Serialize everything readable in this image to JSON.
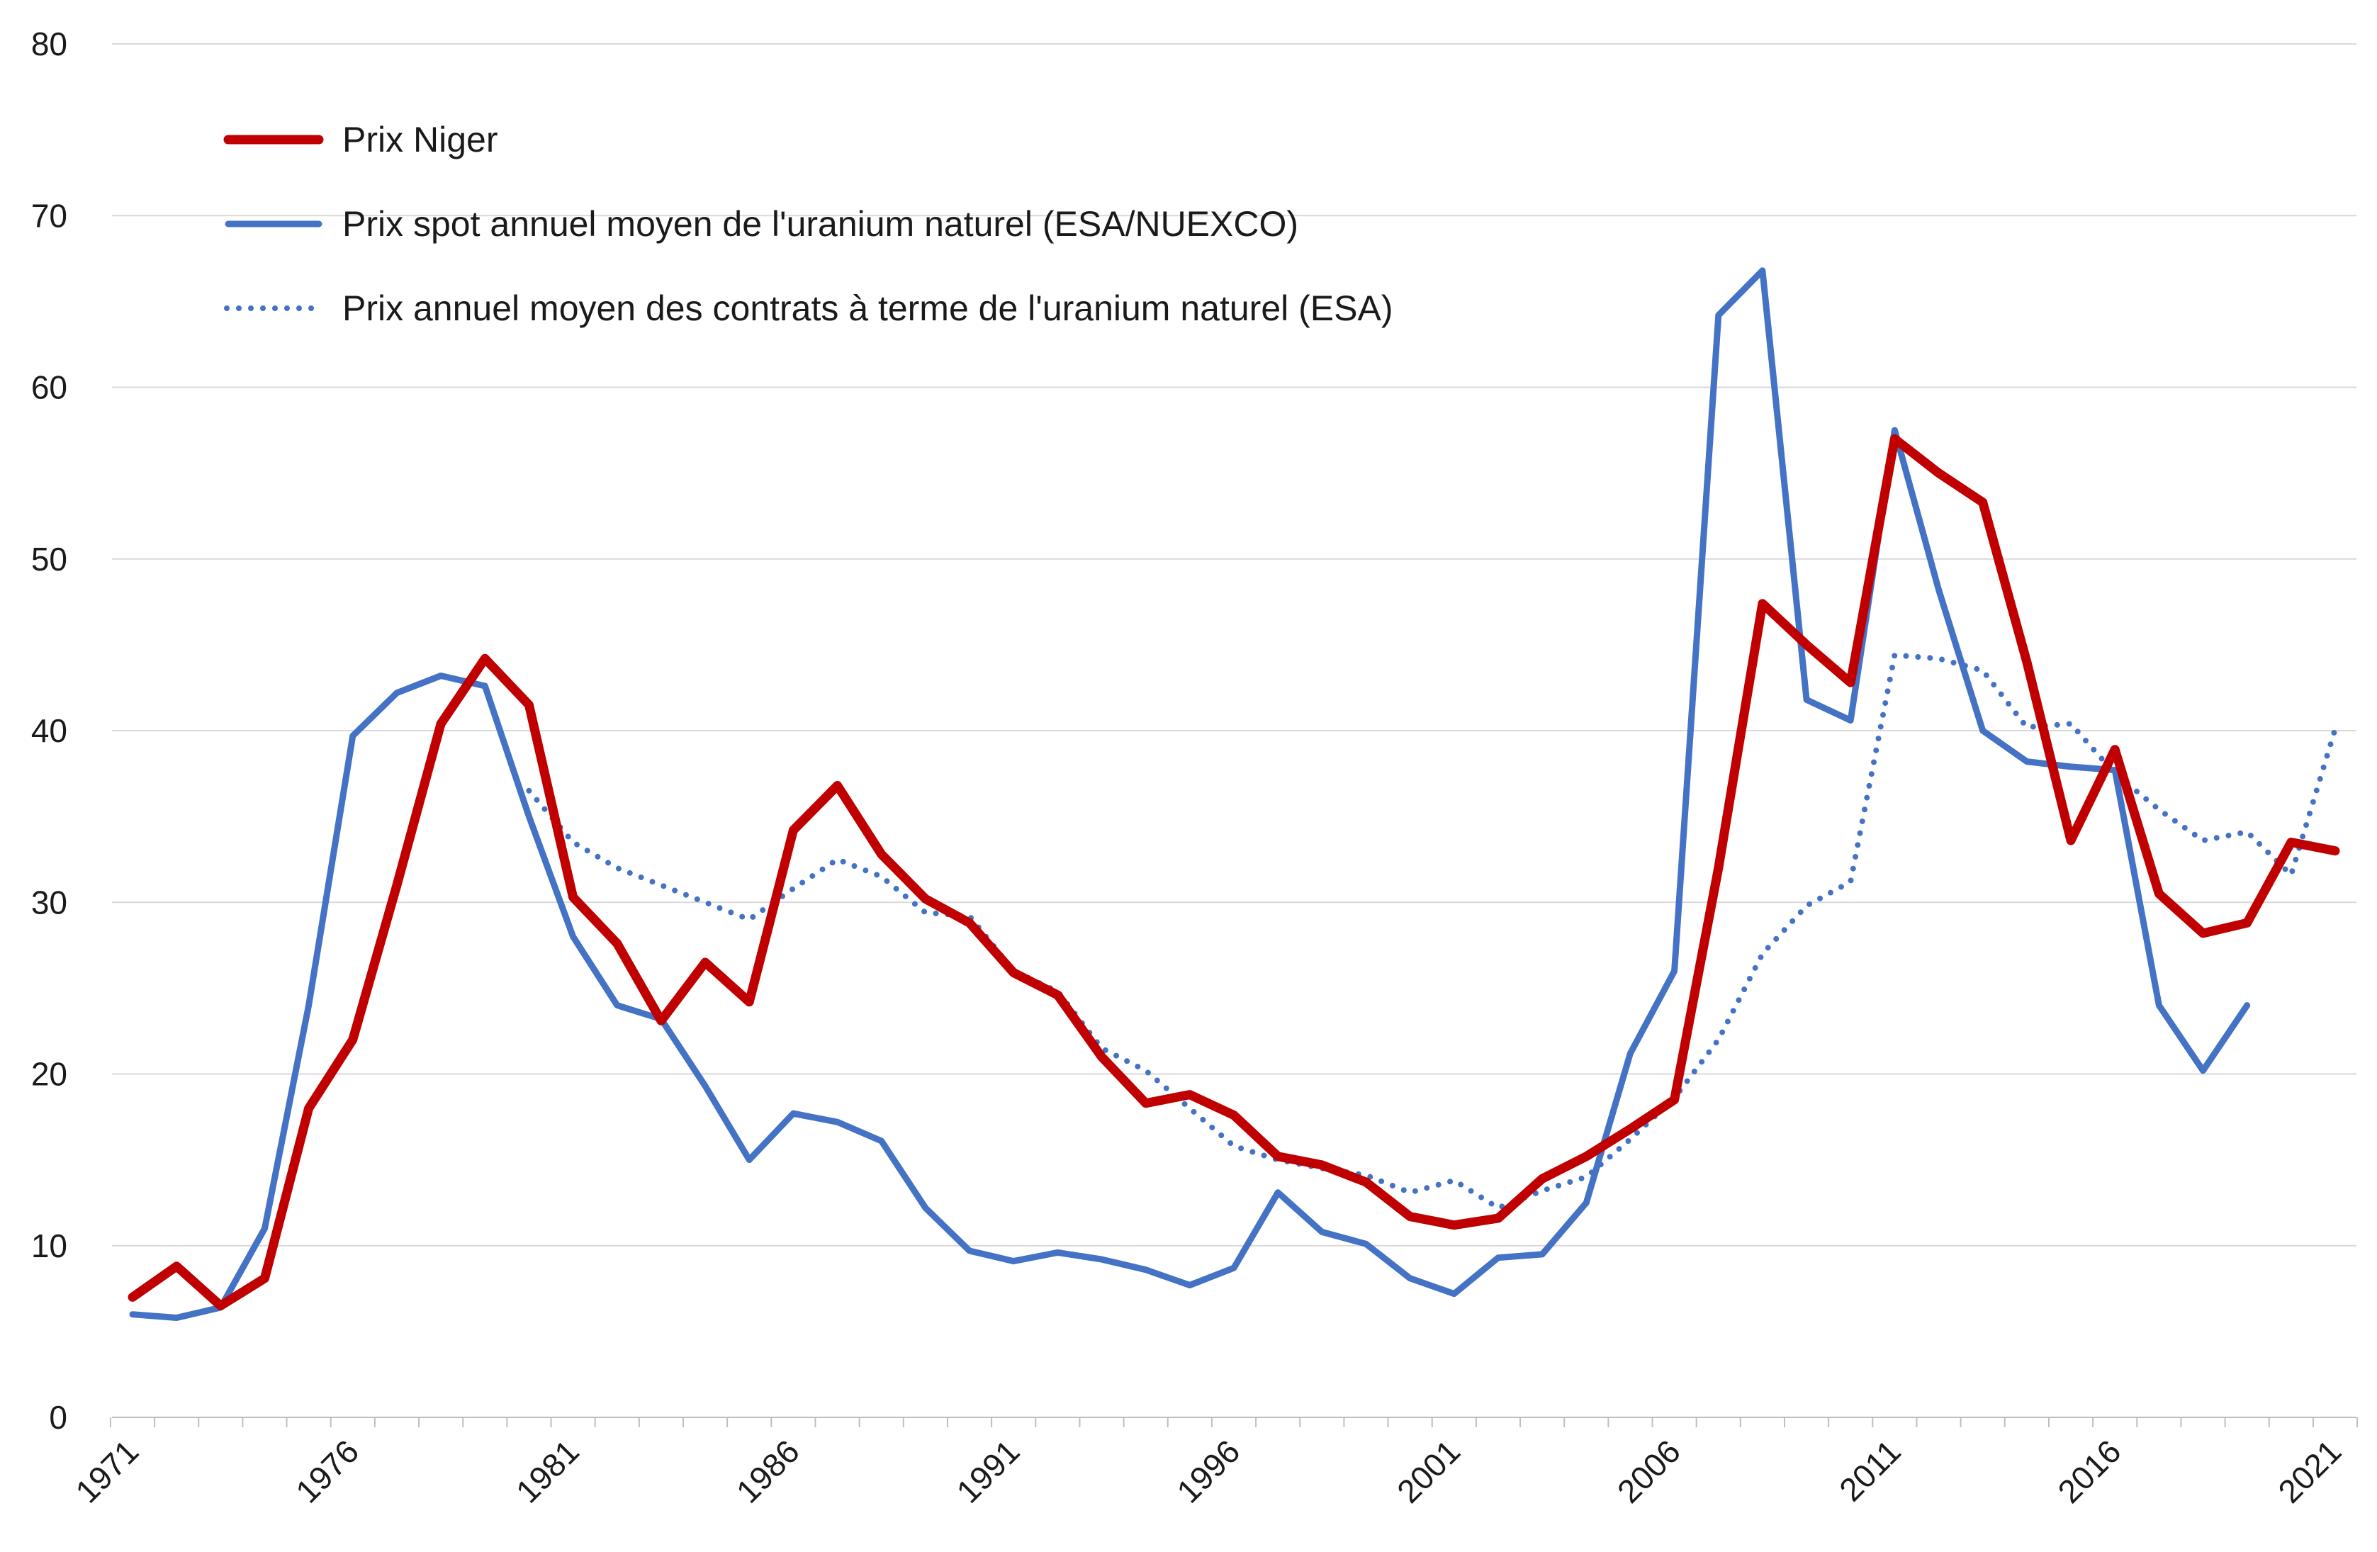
{
  "chart_data": {
    "type": "line",
    "title": "",
    "xlabel": "",
    "ylabel": "",
    "ylim": [
      0,
      80
    ],
    "xlim": [
      1971,
      2021
    ],
    "y_ticks": [
      "0",
      "10",
      "20",
      "30",
      "40",
      "50",
      "60",
      "70",
      "80"
    ],
    "x_ticks": [
      "1971",
      "1976",
      "1981",
      "1986",
      "1991",
      "1996",
      "2001",
      "2006",
      "2011",
      "2016",
      "2021"
    ],
    "grid": "horizontal",
    "legend_position": "top-left",
    "series": [
      {
        "name": "Prix Niger",
        "color": "#c00000",
        "style": "solid",
        "points": [
          [
            1971,
            7.0
          ],
          [
            1972,
            8.8
          ],
          [
            1973,
            6.5
          ],
          [
            1974,
            8.1
          ],
          [
            1975,
            18.0
          ],
          [
            1976,
            22.0
          ],
          [
            1977,
            31.0
          ],
          [
            1978,
            40.4
          ],
          [
            1979,
            44.2
          ],
          [
            1980,
            41.5
          ],
          [
            1981,
            30.3
          ],
          [
            1982,
            27.6
          ],
          [
            1983,
            23.1
          ],
          [
            1984,
            26.5
          ],
          [
            1985,
            24.2
          ],
          [
            1986,
            34.2
          ],
          [
            1987,
            36.8
          ],
          [
            1988,
            32.8
          ],
          [
            1989,
            30.2
          ],
          [
            1990,
            28.8
          ],
          [
            1991,
            25.9
          ],
          [
            1992,
            24.6
          ],
          [
            1993,
            21.0
          ],
          [
            1994,
            18.3
          ],
          [
            1995,
            18.8
          ],
          [
            1996,
            17.6
          ],
          [
            1997,
            15.2
          ],
          [
            1998,
            14.7
          ],
          [
            1999,
            13.7
          ],
          [
            2000,
            11.7
          ],
          [
            2001,
            11.2
          ],
          [
            2002,
            11.6
          ],
          [
            2003,
            13.9
          ],
          [
            2004,
            15.2
          ],
          [
            2005,
            16.8
          ],
          [
            2006,
            18.5
          ],
          [
            2007,
            32.0
          ],
          [
            2008,
            47.4
          ],
          [
            2009,
            45.0
          ],
          [
            2010,
            42.8
          ],
          [
            2011,
            57.0
          ],
          [
            2012,
            55.0
          ],
          [
            2013,
            53.3
          ],
          [
            2014,
            44.0
          ],
          [
            2015,
            33.6
          ],
          [
            2016,
            38.9
          ],
          [
            2017,
            30.5
          ],
          [
            2018,
            28.2
          ],
          [
            2019,
            28.8
          ],
          [
            2020,
            33.5
          ],
          [
            2021,
            33.0
          ]
        ]
      },
      {
        "name": "Prix spot annuel moyen de l'uranium naturel (ESA/NUEXCO)",
        "color": "#4472c4",
        "style": "solid",
        "points": [
          [
            1971,
            6.0
          ],
          [
            1972,
            5.8
          ],
          [
            1973,
            6.4
          ],
          [
            1974,
            11.0
          ],
          [
            1975,
            24.0
          ],
          [
            1976,
            39.7
          ],
          [
            1977,
            42.2
          ],
          [
            1978,
            43.2
          ],
          [
            1979,
            42.6
          ],
          [
            1980,
            35.0
          ],
          [
            1981,
            28.0
          ],
          [
            1982,
            24.0
          ],
          [
            1983,
            23.2
          ],
          [
            1984,
            19.3
          ],
          [
            1985,
            15.0
          ],
          [
            1986,
            17.7
          ],
          [
            1987,
            17.2
          ],
          [
            1988,
            16.1
          ],
          [
            1989,
            12.2
          ],
          [
            1990,
            9.7
          ],
          [
            1991,
            9.1
          ],
          [
            1992,
            9.6
          ],
          [
            1993,
            9.2
          ],
          [
            1994,
            8.6
          ],
          [
            1995,
            7.7
          ],
          [
            1996,
            8.7
          ],
          [
            1997,
            13.1
          ],
          [
            1998,
            10.8
          ],
          [
            1999,
            10.1
          ],
          [
            2000,
            8.1
          ],
          [
            2001,
            7.2
          ],
          [
            2002,
            9.3
          ],
          [
            2003,
            9.5
          ],
          [
            2004,
            12.5
          ],
          [
            2005,
            21.2
          ],
          [
            2006,
            26.0
          ],
          [
            2007,
            64.2
          ],
          [
            2008,
            66.8
          ],
          [
            2009,
            41.8
          ],
          [
            2010,
            40.6
          ],
          [
            2011,
            57.5
          ],
          [
            2012,
            48.2
          ],
          [
            2013,
            40.0
          ],
          [
            2014,
            38.2
          ],
          [
            2015,
            37.9
          ],
          [
            2016,
            37.7
          ],
          [
            2017,
            24.0
          ],
          [
            2018,
            20.2
          ],
          [
            2019,
            24.0
          ]
        ]
      },
      {
        "name": "Prix annuel moyen des contrats à terme de l'uranium naturel (ESA)",
        "color": "#4472c4",
        "style": "dotted",
        "points": [
          [
            1980,
            36.5
          ],
          [
            1981,
            33.5
          ],
          [
            1982,
            32.0
          ],
          [
            1983,
            31.0
          ],
          [
            1984,
            30.0
          ],
          [
            1985,
            29.0
          ],
          [
            1986,
            30.8
          ],
          [
            1987,
            32.5
          ],
          [
            1988,
            31.5
          ],
          [
            1989,
            29.4
          ],
          [
            1990,
            29.2
          ],
          [
            1991,
            26.0
          ],
          [
            1992,
            24.8
          ],
          [
            1993,
            21.5
          ],
          [
            1994,
            20.2
          ],
          [
            1995,
            18.0
          ],
          [
            1996,
            15.8
          ],
          [
            1997,
            15.0
          ],
          [
            1998,
            14.5
          ],
          [
            1999,
            14.1
          ],
          [
            2000,
            13.1
          ],
          [
            2001,
            13.8
          ],
          [
            2002,
            12.2
          ],
          [
            2003,
            13.2
          ],
          [
            2004,
            14.0
          ],
          [
            2005,
            16.2
          ],
          [
            2006,
            18.6
          ],
          [
            2007,
            22.0
          ],
          [
            2008,
            27.0
          ],
          [
            2009,
            29.8
          ],
          [
            2010,
            31.2
          ],
          [
            2011,
            44.4
          ],
          [
            2012,
            44.2
          ],
          [
            2013,
            43.5
          ],
          [
            2014,
            40.2
          ],
          [
            2015,
            40.4
          ],
          [
            2016,
            37.5
          ],
          [
            2017,
            35.4
          ],
          [
            2018,
            33.6
          ],
          [
            2019,
            34.1
          ],
          [
            2020,
            31.6
          ],
          [
            2021,
            40.1
          ]
        ]
      }
    ]
  }
}
